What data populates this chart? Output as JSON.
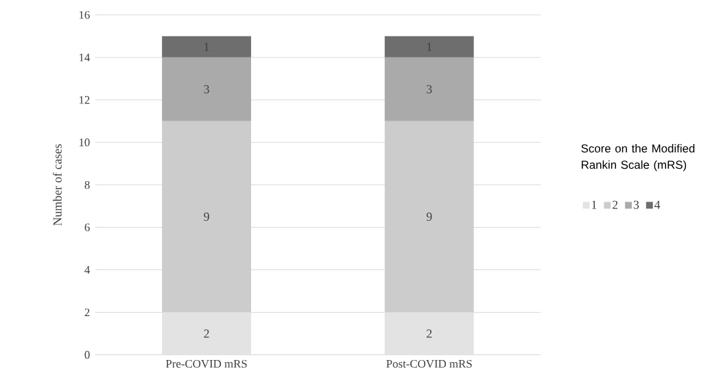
{
  "chart_data": {
    "type": "bar",
    "stacked": true,
    "ylabel": "Number of cases",
    "legend_title": "Score on the Modified Rankin Scale (mRS)",
    "categories": [
      "Pre-COVID mRS",
      "Post-COVID mRS"
    ],
    "series": [
      {
        "name": "1",
        "color": "#e3e3e3",
        "values": [
          2,
          2
        ]
      },
      {
        "name": "2",
        "color": "#cccccc",
        "values": [
          9,
          9
        ]
      },
      {
        "name": "3",
        "color": "#aaaaaa",
        "values": [
          3,
          3
        ]
      },
      {
        "name": "4",
        "color": "#6e6e6e",
        "values": [
          1,
          1
        ]
      }
    ],
    "ylim": [
      0,
      16
    ],
    "yticks": [
      0,
      2,
      4,
      6,
      8,
      10,
      12,
      14,
      16
    ],
    "grid": "y",
    "legend": "right",
    "data_labels": true
  }
}
